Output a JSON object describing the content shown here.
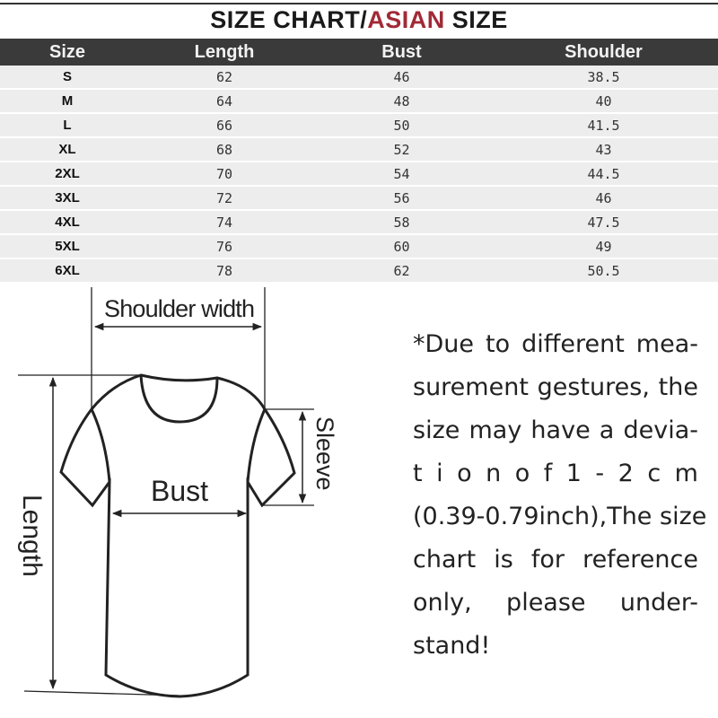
{
  "title": {
    "part1": "SIZE  CHART/",
    "accent": "ASIAN",
    "part2": " SIZE",
    "accent_color": "#a02a36"
  },
  "table": {
    "headers": [
      "Size",
      "Length",
      "Bust",
      "Shoulder"
    ],
    "rows": [
      [
        "S",
        "62",
        "46",
        "38.5"
      ],
      [
        "M",
        "64",
        "48",
        "40"
      ],
      [
        "L",
        "66",
        "50",
        "41.5"
      ],
      [
        "XL",
        "68",
        "52",
        "43"
      ],
      [
        "2XL",
        "70",
        "54",
        "44.5"
      ],
      [
        "3XL",
        "72",
        "56",
        "46"
      ],
      [
        "4XL",
        "74",
        "58",
        "47.5"
      ],
      [
        "5XL",
        "76",
        "60",
        "49"
      ],
      [
        "6XL",
        "78",
        "62",
        "50.5"
      ]
    ]
  },
  "diagram": {
    "shoulder": "Shoulder width",
    "bust": "Bust",
    "sleeve": "Sleeve",
    "length": "Length"
  },
  "note": {
    "lines": [
      "*Due to different mea-",
      "surement gestures, the",
      "size may have a devia-",
      "t i o n   o f   1 - 2 c m",
      "(0.39-0.79inch),The size",
      "chart is for reference",
      "only, please under-",
      "stand!"
    ]
  }
}
